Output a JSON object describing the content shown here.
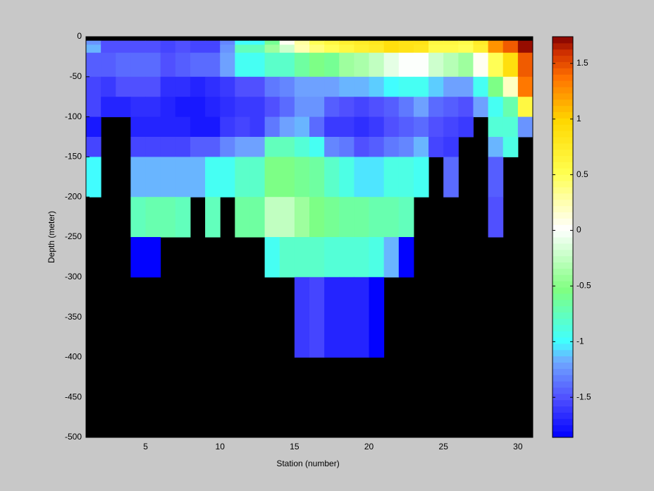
{
  "chart_data": {
    "type": "heatmap",
    "xlabel": "Station (number)",
    "ylabel": "Depth (meter)",
    "x_edges": [
      1,
      2,
      3,
      4,
      5,
      6,
      7,
      8,
      9,
      10,
      11,
      12,
      13,
      14,
      15,
      16,
      17,
      18,
      19,
      20,
      21,
      22,
      23,
      24,
      25,
      26,
      27,
      28,
      29,
      30,
      31
    ],
    "y_edges": [
      -5,
      -10,
      -20,
      -50,
      -75,
      -100,
      -125,
      -150,
      -200,
      -250,
      -300,
      -400
    ],
    "values": [
      [
        -1.25,
        -1.5,
        -1.5,
        -1.5,
        -1.5,
        -1.55,
        -1.5,
        -1.55,
        -1.55,
        -1.3,
        -1.0,
        -1.0,
        -0.6,
        0.05,
        0.3,
        0.5,
        0.6,
        0.7,
        0.75,
        0.8,
        0.9,
        0.85,
        0.85,
        0.6,
        0.6,
        0.55,
        0.75,
        1.25,
        1.45,
        1.7
      ],
      [
        -1.15,
        -1.5,
        -1.5,
        -1.5,
        -1.5,
        -1.55,
        -1.5,
        -1.55,
        -1.55,
        -1.25,
        -0.75,
        -0.75,
        -0.4,
        -0.2,
        0.25,
        0.4,
        0.5,
        0.6,
        0.7,
        0.75,
        0.9,
        0.85,
        0.8,
        0.55,
        0.55,
        0.5,
        0.7,
        1.25,
        1.45,
        1.7
      ],
      [
        -1.45,
        -1.45,
        -1.4,
        -1.4,
        -1.4,
        -1.5,
        -1.45,
        -1.4,
        -1.4,
        -1.2,
        -0.95,
        -0.95,
        -0.8,
        -0.8,
        -0.65,
        -0.55,
        -0.6,
        -0.4,
        -0.35,
        -0.25,
        -0.1,
        0.0,
        0.0,
        -0.2,
        -0.3,
        -0.4,
        0.05,
        0.5,
        0.9,
        1.45
      ],
      [
        -1.55,
        -1.6,
        -1.5,
        -1.5,
        -1.5,
        -1.65,
        -1.65,
        -1.7,
        -1.65,
        -1.6,
        -1.5,
        -1.5,
        -1.35,
        -1.3,
        -1.2,
        -1.2,
        -1.2,
        -1.15,
        -1.15,
        -1.1,
        -1.0,
        -0.95,
        -0.95,
        -1.1,
        -1.2,
        -1.2,
        -0.95,
        -0.55,
        0.2,
        1.35
      ],
      [
        -1.55,
        -1.7,
        -1.7,
        -1.65,
        -1.65,
        -1.7,
        -1.75,
        -1.75,
        -1.7,
        -1.65,
        -1.6,
        -1.6,
        -1.5,
        -1.4,
        -1.25,
        -1.25,
        -1.45,
        -1.5,
        -1.55,
        -1.5,
        -1.45,
        -1.35,
        -1.2,
        -1.4,
        -1.45,
        -1.5,
        -1.2,
        -0.95,
        -0.7,
        0.6
      ],
      [
        -1.75,
        null,
        null,
        -1.7,
        -1.7,
        -1.7,
        -1.7,
        -1.75,
        -1.75,
        -1.6,
        -1.55,
        -1.6,
        -1.35,
        -1.2,
        -1.15,
        -1.4,
        -1.6,
        -1.6,
        -1.65,
        -1.6,
        -1.5,
        -1.45,
        -1.4,
        -1.5,
        -1.55,
        -1.6,
        null,
        -0.85,
        -0.85,
        -1.25
      ],
      [
        -1.55,
        null,
        null,
        -1.55,
        -1.55,
        -1.55,
        -1.55,
        -1.45,
        -1.45,
        -1.3,
        -1.2,
        -1.2,
        -0.75,
        -0.75,
        -0.85,
        -0.95,
        -1.3,
        -1.35,
        -1.5,
        -1.45,
        -1.35,
        -1.3,
        -1.15,
        -1.55,
        -1.6,
        null,
        null,
        -1.15,
        -0.9,
        null
      ],
      [
        -1.0,
        null,
        null,
        -1.15,
        -1.15,
        -1.15,
        -1.15,
        -1.15,
        -0.95,
        -0.95,
        -0.8,
        -0.8,
        -0.55,
        -0.55,
        -0.6,
        -0.65,
        -0.8,
        -0.9,
        -1.05,
        -1.05,
        -0.9,
        -0.9,
        -0.95,
        null,
        -1.4,
        null,
        null,
        -1.45,
        null,
        null
      ],
      [
        null,
        null,
        null,
        -0.75,
        -0.7,
        -0.7,
        -0.75,
        null,
        -0.75,
        null,
        -0.65,
        -0.65,
        -0.25,
        -0.25,
        -0.4,
        -0.55,
        -0.6,
        -0.65,
        -0.65,
        -0.7,
        -0.7,
        -0.75,
        null,
        null,
        null,
        null,
        null,
        -1.5,
        null,
        null
      ],
      [
        null,
        null,
        null,
        -1.85,
        -1.85,
        null,
        null,
        null,
        null,
        null,
        null,
        null,
        -0.95,
        -0.8,
        -0.8,
        -0.8,
        -0.85,
        -0.85,
        -0.85,
        -0.9,
        -1.15,
        -1.85,
        null,
        null,
        null,
        null,
        null,
        null,
        null,
        null
      ],
      [
        null,
        null,
        null,
        null,
        null,
        null,
        null,
        null,
        null,
        null,
        null,
        null,
        null,
        null,
        -1.6,
        -1.55,
        -1.7,
        -1.7,
        -1.7,
        -1.85,
        null,
        null,
        null,
        null,
        null,
        null,
        null,
        null,
        null,
        null
      ]
    ],
    "xlim": [
      1,
      31
    ],
    "ylim": [
      -500,
      0
    ],
    "xticks": [
      5,
      10,
      15,
      20,
      25,
      30
    ],
    "yticks": [
      0,
      -50,
      -100,
      -150,
      -200,
      -250,
      -300,
      -350,
      -400,
      -450,
      -500
    ],
    "clim": [
      -1.86,
      1.74
    ],
    "cticks": [
      -1.5,
      -1,
      -0.5,
      0,
      0.5,
      1,
      1.5
    ],
    "colormap": [
      [
        0,
        "#0000ff"
      ],
      [
        0.1,
        "#5050ff"
      ],
      [
        0.19,
        "#70a8ff"
      ],
      [
        0.24,
        "#40ffff"
      ],
      [
        0.37,
        "#80ff80"
      ],
      [
        0.52,
        "#ffffff"
      ],
      [
        0.6,
        "#ffffa0"
      ],
      [
        0.66,
        "#ffff50"
      ],
      [
        0.79,
        "#ffd800"
      ],
      [
        0.85,
        "#ffa000"
      ],
      [
        0.9,
        "#ff7000"
      ],
      [
        0.96,
        "#d03000"
      ],
      [
        1,
        "#800000"
      ]
    ],
    "nan_color": "#000000"
  }
}
